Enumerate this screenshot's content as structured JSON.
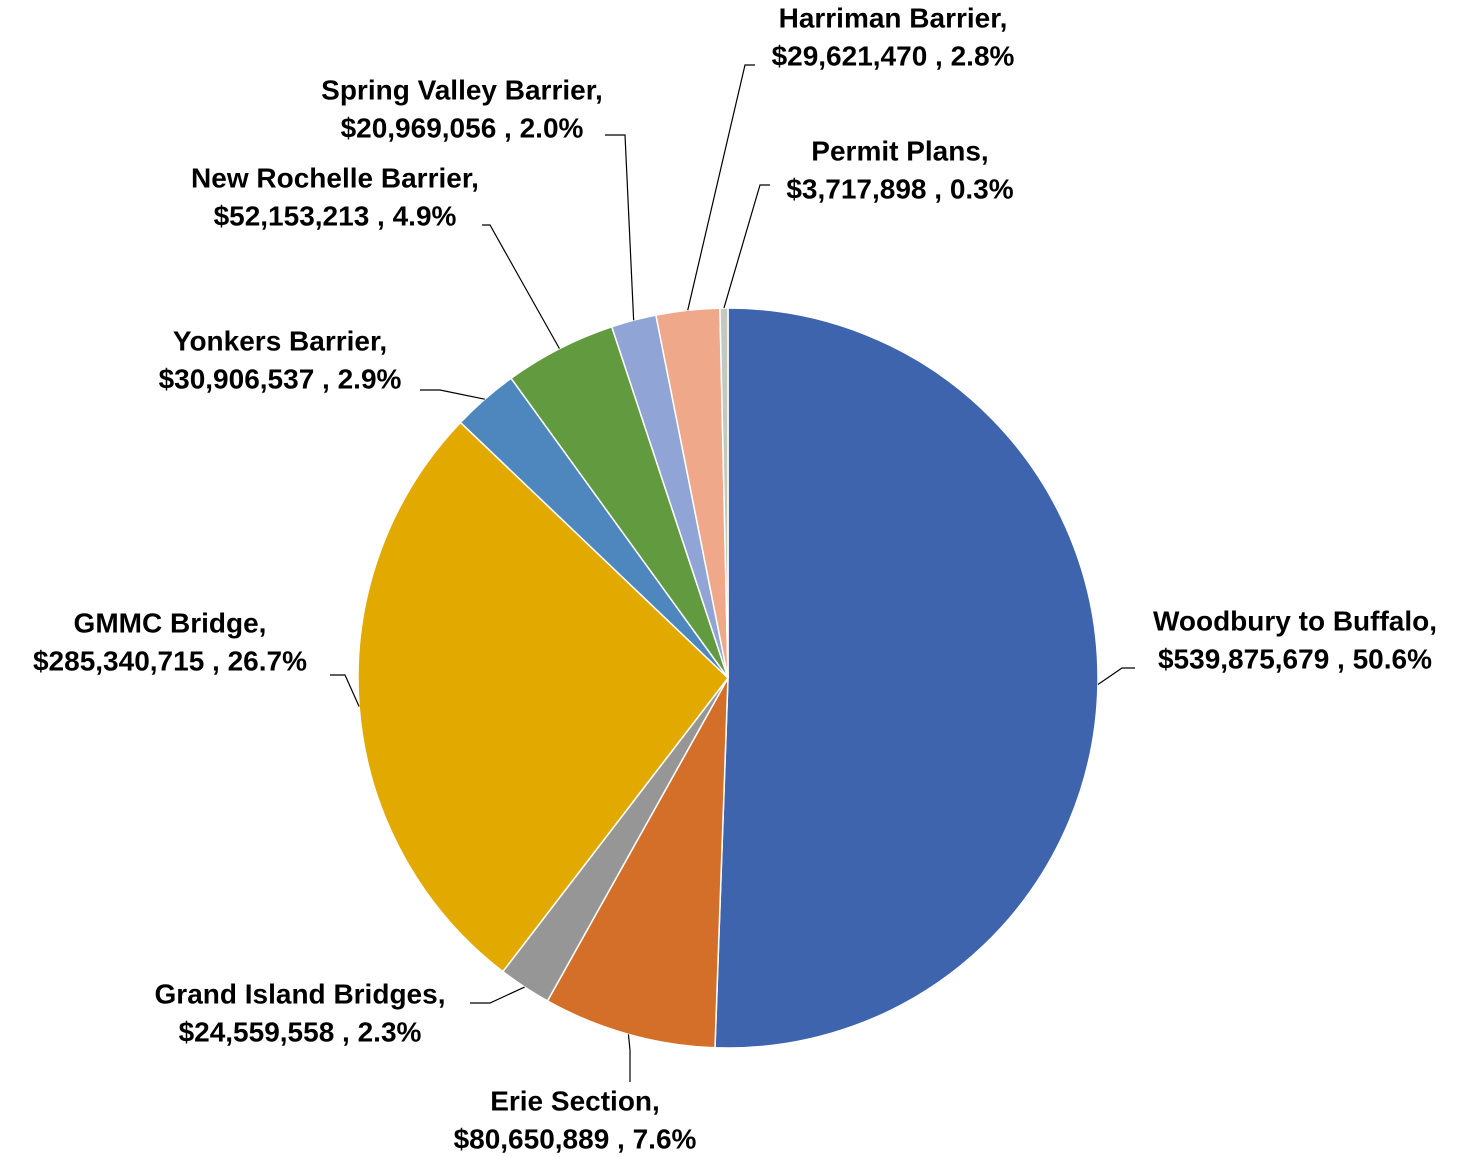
{
  "chart_data": {
    "type": "pie",
    "categories": [
      "Woodbury to Buffalo,",
      "Erie Section,",
      "Grand Island Bridges,",
      "GMMC Bridge,",
      "Yonkers Barrier,",
      "New Rochelle Barrier,",
      "Spring Valley Barrier,",
      "Harriman Barrier,",
      "Permit Plans,"
    ],
    "values": [
      539875679,
      80650889,
      24559558,
      285340715,
      30906537,
      52153213,
      20969056,
      29621470,
      3717898
    ],
    "value_labels": [
      "$539,875,679 , 50.6%",
      "$80,650,889 , 7.6%",
      "$24,559,558 , 2.3%",
      "$285,340,715 , 26.7%",
      "$30,906,537 , 2.9%",
      "$52,153,213 , 4.9%",
      "$20,969,056 , 2.0%",
      "$29,621,470 , 2.8%",
      "$3,717,898 , 0.3%"
    ],
    "colors": [
      "#3d64ad",
      "#d46f2a",
      "#969696",
      "#e2a900",
      "#4d87bd",
      "#619a3f",
      "#90a5d6",
      "#f0a88a",
      "#c4c9bd"
    ]
  }
}
